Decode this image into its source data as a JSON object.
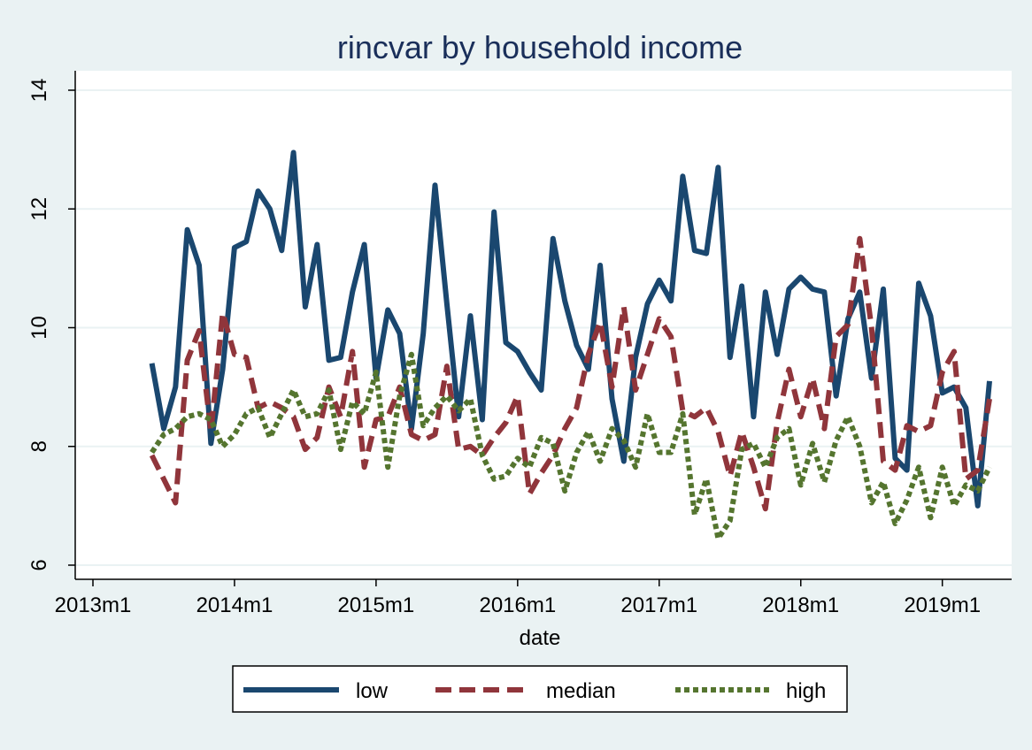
{
  "chart_data": {
    "type": "line",
    "title": "rincvar by household income",
    "xlabel": "date",
    "ylabel": "",
    "xlim": [
      "2012-12",
      "2019-05"
    ],
    "ylim": [
      6,
      14
    ],
    "x_ticks": [
      {
        "date": "2013-01",
        "label": "2013m1"
      },
      {
        "date": "2014-01",
        "label": "2014m1"
      },
      {
        "date": "2015-01",
        "label": "2015m1"
      },
      {
        "date": "2016-01",
        "label": "2016m1"
      },
      {
        "date": "2017-01",
        "label": "2017m1"
      },
      {
        "date": "2018-01",
        "label": "2018m1"
      },
      {
        "date": "2019-01",
        "label": "2019m1"
      }
    ],
    "y_ticks": [
      6,
      8,
      10,
      12,
      14
    ],
    "grid": true,
    "legend_position": "bottom",
    "x": [
      "2013-06",
      "2013-07",
      "2013-08",
      "2013-09",
      "2013-10",
      "2013-11",
      "2013-12",
      "2014-01",
      "2014-02",
      "2014-03",
      "2014-04",
      "2014-05",
      "2014-06",
      "2014-07",
      "2014-08",
      "2014-09",
      "2014-10",
      "2014-11",
      "2014-12",
      "2015-01",
      "2015-02",
      "2015-03",
      "2015-04",
      "2015-05",
      "2015-06",
      "2015-07",
      "2015-08",
      "2015-09",
      "2015-10",
      "2015-11",
      "2015-12",
      "2016-01",
      "2016-02",
      "2016-03",
      "2016-04",
      "2016-05",
      "2016-06",
      "2016-07",
      "2016-08",
      "2016-09",
      "2016-10",
      "2016-11",
      "2016-12",
      "2017-01",
      "2017-02",
      "2017-03",
      "2017-04",
      "2017-05",
      "2017-06",
      "2017-07",
      "2017-08",
      "2017-09",
      "2017-10",
      "2017-11",
      "2017-12",
      "2018-01",
      "2018-02",
      "2018-03",
      "2018-04",
      "2018-05",
      "2018-06",
      "2018-07",
      "2018-08",
      "2018-09",
      "2018-10",
      "2018-11",
      "2018-12",
      "2019-01",
      "2019-02",
      "2019-03",
      "2019-04",
      "2019-05"
    ],
    "series": [
      {
        "name": "low",
        "color": "#1a476f",
        "dash": "solid",
        "values": [
          9.4,
          8.3,
          9.0,
          11.65,
          11.05,
          8.05,
          9.3,
          11.35,
          11.45,
          12.3,
          12.0,
          11.3,
          12.95,
          10.35,
          11.4,
          9.45,
          9.5,
          10.6,
          11.4,
          9.15,
          10.3,
          9.9,
          8.3,
          9.9,
          12.4,
          10.4,
          8.5,
          10.2,
          8.45,
          11.95,
          9.75,
          9.6,
          9.25,
          8.95,
          11.5,
          10.45,
          9.7,
          9.3,
          11.05,
          8.8,
          7.75,
          9.5,
          10.4,
          10.8,
          10.45,
          12.55,
          11.3,
          11.25,
          12.7,
          9.5,
          10.7,
          8.5,
          10.6,
          9.55,
          10.65,
          10.85,
          10.65,
          10.6,
          8.85,
          10.15,
          10.6,
          9.15,
          10.65,
          7.8,
          7.6,
          10.75,
          10.2,
          8.9,
          9.0,
          8.65,
          7.0,
          9.1
        ]
      },
      {
        "name": "median",
        "color": "#90353b",
        "dash": "dashed",
        "values": [
          7.85,
          7.45,
          7.05,
          9.45,
          9.95,
          8.25,
          10.25,
          9.55,
          9.5,
          8.65,
          8.75,
          8.65,
          8.5,
          7.95,
          8.15,
          9.0,
          8.5,
          9.6,
          7.65,
          8.45,
          8.5,
          9.0,
          8.2,
          8.1,
          8.2,
          9.35,
          7.95,
          8.0,
          7.85,
          8.15,
          8.4,
          8.85,
          7.2,
          7.55,
          7.85,
          8.3,
          8.65,
          9.55,
          10.1,
          9.0,
          10.35,
          8.95,
          9.55,
          10.15,
          9.85,
          8.6,
          8.5,
          8.65,
          8.25,
          7.5,
          8.25,
          7.65,
          6.95,
          8.4,
          9.3,
          8.5,
          9.15,
          8.3,
          9.85,
          10.05,
          11.5,
          10.0,
          7.75,
          7.6,
          8.35,
          8.25,
          8.35,
          9.25,
          9.6,
          7.45,
          7.6,
          8.8
        ]
      },
      {
        "name": "high",
        "color": "#55752f",
        "dash": "dotted",
        "values": [
          7.9,
          8.2,
          8.3,
          8.5,
          8.55,
          8.45,
          8.0,
          8.2,
          8.55,
          8.65,
          8.15,
          8.55,
          8.95,
          8.5,
          8.55,
          8.95,
          7.95,
          8.75,
          8.55,
          9.25,
          7.65,
          8.85,
          9.55,
          8.35,
          8.65,
          8.85,
          8.6,
          8.8,
          7.85,
          7.45,
          7.5,
          7.8,
          7.65,
          8.15,
          8.05,
          7.25,
          7.9,
          8.25,
          7.75,
          8.3,
          8.1,
          7.65,
          8.55,
          7.9,
          7.9,
          8.55,
          6.85,
          7.45,
          6.45,
          6.75,
          7.95,
          8.05,
          7.65,
          8.15,
          8.3,
          7.35,
          8.05,
          7.4,
          8.1,
          8.5,
          8.0,
          7.05,
          7.4,
          6.7,
          7.1,
          7.65,
          6.8,
          7.65,
          7.0,
          7.35,
          7.25,
          7.65
        ]
      }
    ]
  }
}
